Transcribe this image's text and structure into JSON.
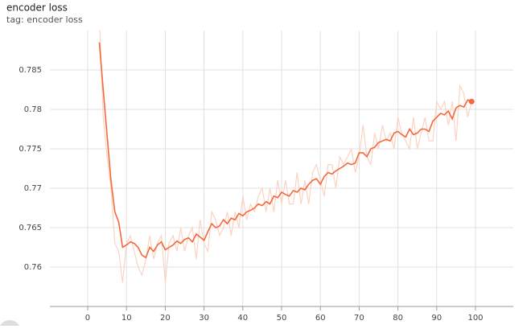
{
  "chart_data": {
    "type": "line",
    "title": "encoder loss",
    "subtitle": "tag: encoder loss",
    "x": [
      3,
      4,
      5,
      6,
      7,
      8,
      9,
      10,
      11,
      12,
      13,
      14,
      15,
      16,
      17,
      18,
      19,
      20,
      21,
      22,
      23,
      24,
      25,
      26,
      27,
      28,
      29,
      30,
      31,
      32,
      33,
      34,
      35,
      36,
      37,
      38,
      39,
      40,
      41,
      42,
      43,
      44,
      45,
      46,
      47,
      48,
      49,
      50,
      51,
      52,
      53,
      54,
      55,
      56,
      57,
      58,
      59,
      60,
      61,
      62,
      63,
      64,
      65,
      66,
      67,
      68,
      69,
      70,
      71,
      72,
      73,
      74,
      75,
      76,
      77,
      78,
      79,
      80,
      81,
      82,
      83,
      84,
      85,
      86,
      87,
      88,
      89,
      90,
      91,
      92,
      93,
      94,
      95,
      96,
      97,
      98,
      99
    ],
    "series": [
      {
        "color": "#fbd3c3",
        "values": [
          0.792,
          0.779,
          0.774,
          0.77,
          0.763,
          0.762,
          0.758,
          0.763,
          0.764,
          0.762,
          0.76,
          0.759,
          0.761,
          0.764,
          0.761,
          0.763,
          0.764,
          0.758,
          0.763,
          0.764,
          0.762,
          0.765,
          0.762,
          0.764,
          0.765,
          0.761,
          0.766,
          0.763,
          0.762,
          0.767,
          0.766,
          0.764,
          0.765,
          0.767,
          0.764,
          0.767,
          0.765,
          0.769,
          0.766,
          0.768,
          0.767,
          0.769,
          0.77,
          0.767,
          0.77,
          0.767,
          0.771,
          0.768,
          0.771,
          0.768,
          0.768,
          0.772,
          0.768,
          0.771,
          0.768,
          0.772,
          0.773,
          0.771,
          0.769,
          0.773,
          0.773,
          0.77,
          0.774,
          0.773,
          0.774,
          0.775,
          0.772,
          0.774,
          0.778,
          0.774,
          0.773,
          0.777,
          0.775,
          0.778,
          0.776,
          0.777,
          0.775,
          0.779,
          0.777,
          0.776,
          0.775,
          0.779,
          0.775,
          0.777,
          0.779,
          0.776,
          0.776,
          0.781,
          0.78,
          0.781,
          0.778,
          0.781,
          0.776,
          0.783,
          0.782,
          0.779,
          0.781
        ]
      },
      {
        "color": "#f4683c",
        "values": [
          0.7885,
          0.7825,
          0.7767,
          0.771,
          0.767,
          0.7657,
          0.7625,
          0.7628,
          0.7632,
          0.763,
          0.7625,
          0.7615,
          0.7612,
          0.7625,
          0.762,
          0.7628,
          0.7632,
          0.7622,
          0.7625,
          0.7628,
          0.7633,
          0.763,
          0.7635,
          0.7637,
          0.7632,
          0.7642,
          0.7638,
          0.7634,
          0.7645,
          0.7655,
          0.765,
          0.7652,
          0.766,
          0.7655,
          0.7662,
          0.766,
          0.7668,
          0.7665,
          0.767,
          0.7672,
          0.7675,
          0.768,
          0.7678,
          0.7683,
          0.768,
          0.769,
          0.7688,
          0.7695,
          0.7692,
          0.769,
          0.7697,
          0.7695,
          0.77,
          0.7698,
          0.7705,
          0.771,
          0.7712,
          0.7705,
          0.7715,
          0.772,
          0.7718,
          0.7722,
          0.7725,
          0.7728,
          0.7732,
          0.773,
          0.7732,
          0.7745,
          0.7745,
          0.774,
          0.775,
          0.7752,
          0.7758,
          0.776,
          0.7762,
          0.776,
          0.777,
          0.7772,
          0.7768,
          0.7765,
          0.7775,
          0.7768,
          0.777,
          0.7775,
          0.7775,
          0.7772,
          0.7785,
          0.779,
          0.7795,
          0.7793,
          0.7798,
          0.7788,
          0.7802,
          0.7805,
          0.7803,
          0.7812,
          0.781
        ]
      }
    ],
    "xlim": [
      -9.75,
      109.75
    ],
    "xticks": [
      0,
      10,
      20,
      30,
      40,
      50,
      60,
      70,
      80,
      90,
      100
    ],
    "ylim": [
      0.755,
      0.79
    ],
    "yticks": [
      0.76,
      0.765,
      0.77,
      0.775,
      0.78,
      0.785
    ],
    "grid": true
  }
}
